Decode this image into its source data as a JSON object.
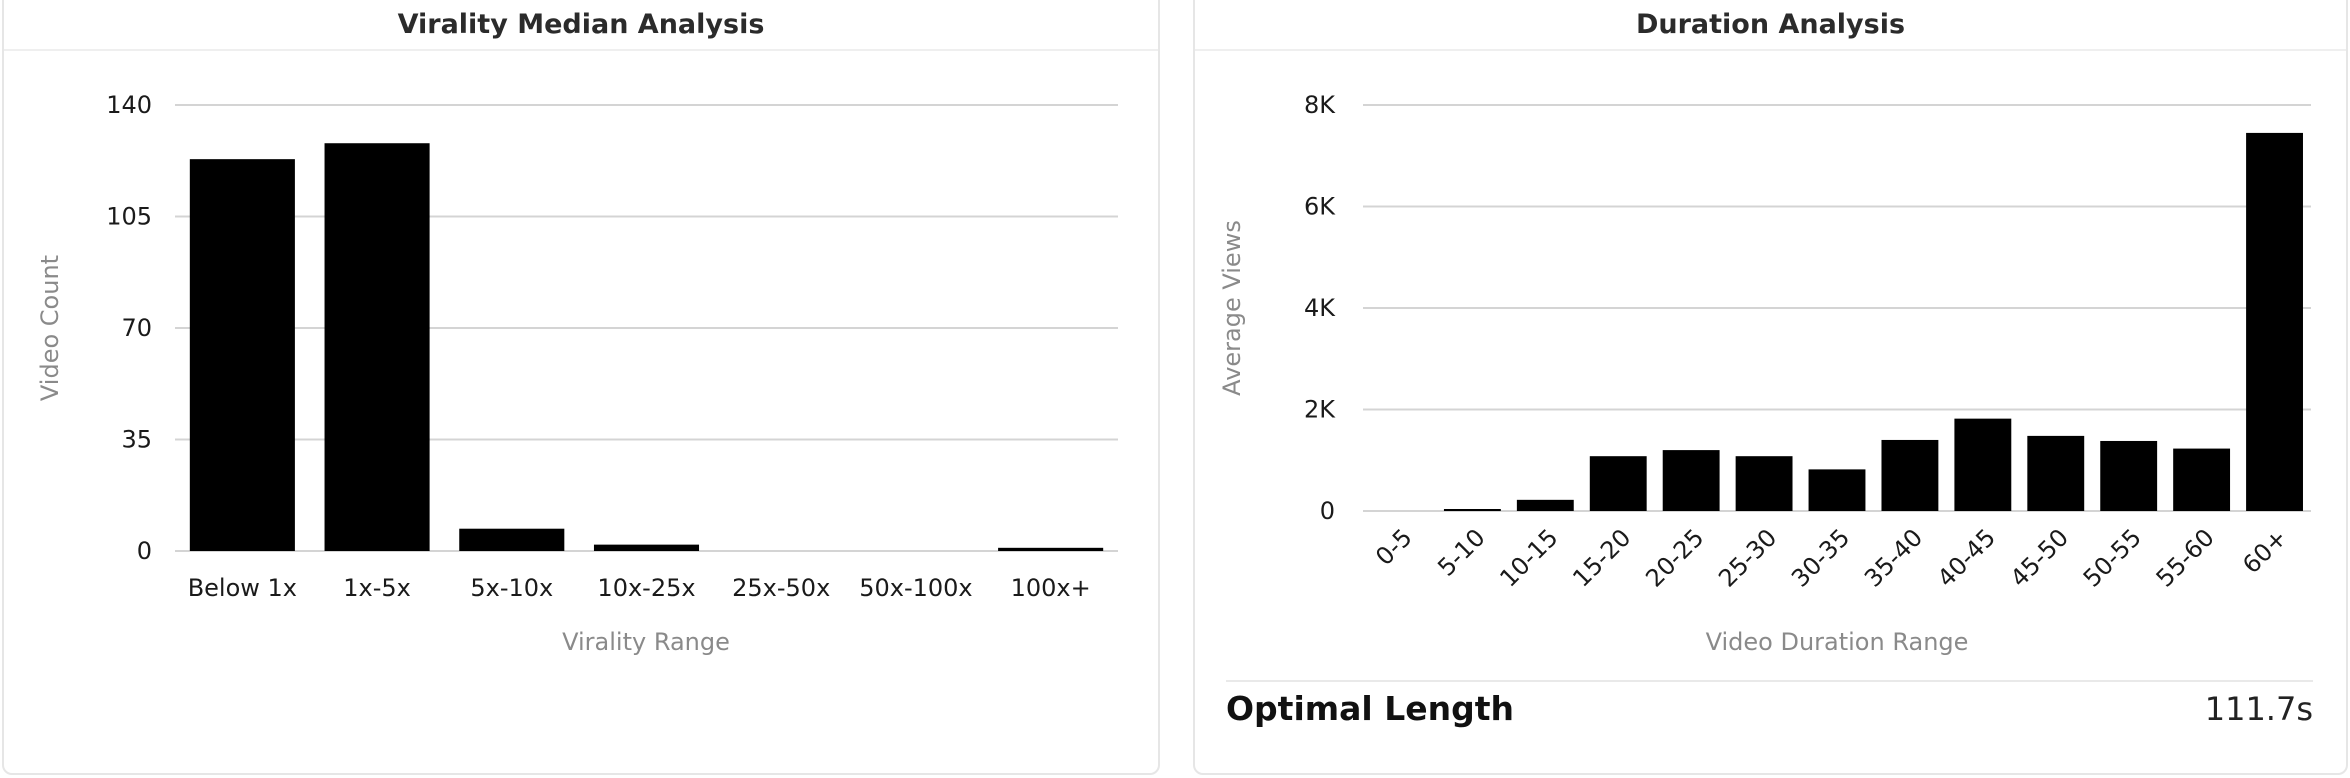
{
  "charts_meta": {
    "grid_color": "#d4d4d4",
    "bar_color": "#000000",
    "axis_title_color": "#8a8a8a",
    "tick_color": "#1a1a1a"
  },
  "chart_data": [
    {
      "type": "bar",
      "title": "Virality Median Analysis",
      "categories": [
        "Below 1x",
        "1x-5x",
        "5x-10x",
        "10x-25x",
        "25x-50x",
        "50x-100x",
        "100x+"
      ],
      "values": [
        123,
        128,
        7,
        2,
        0,
        0,
        1
      ],
      "xlabel": "Virality Range",
      "ylabel": "Video Count",
      "ylim": [
        0,
        140
      ],
      "yticks": [
        0,
        35,
        70,
        105,
        140
      ],
      "ytick_labels": [
        "0",
        "35",
        "70",
        "105",
        "140"
      ],
      "grid": true,
      "legend": "none"
    },
    {
      "type": "bar",
      "title": "Duration Analysis",
      "categories": [
        "0-5",
        "5-10",
        "10-15",
        "15-20",
        "20-25",
        "25-30",
        "30-35",
        "35-40",
        "40-45",
        "45-50",
        "50-55",
        "55-60",
        "60+"
      ],
      "values": [
        0,
        30,
        220,
        1080,
        1200,
        1080,
        820,
        1400,
        1820,
        1480,
        1380,
        1230,
        7450
      ],
      "xlabel": "Video Duration Range",
      "ylabel": "Average Views",
      "ylim": [
        0,
        8000
      ],
      "yticks": [
        0,
        2000,
        4000,
        6000,
        8000
      ],
      "ytick_labels": [
        "0",
        "2K",
        "4K",
        "6K",
        "8K"
      ],
      "grid": true,
      "legend": "none"
    }
  ],
  "summary": {
    "label": "Optimal Length",
    "value": "111.7s"
  }
}
